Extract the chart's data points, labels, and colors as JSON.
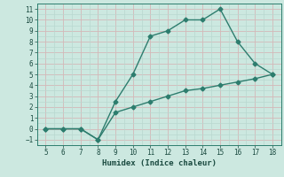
{
  "xlabel": "Humidex (Indice chaleur)",
  "xlim": [
    4.5,
    18.5
  ],
  "ylim": [
    -1.5,
    11.5
  ],
  "xticks": [
    5,
    6,
    7,
    8,
    9,
    10,
    11,
    12,
    13,
    14,
    15,
    16,
    17,
    18
  ],
  "yticks": [
    -1,
    0,
    1,
    2,
    3,
    4,
    5,
    6,
    7,
    8,
    9,
    10,
    11
  ],
  "line1_x": [
    5,
    6,
    7,
    8,
    9,
    10,
    11,
    12,
    13,
    14,
    15,
    16,
    17,
    18
  ],
  "line1_y": [
    0,
    0,
    0,
    -1,
    2.5,
    5,
    8.5,
    9,
    10,
    10,
    11,
    8,
    6,
    5
  ],
  "line2_x": [
    5,
    6,
    7,
    8,
    9,
    10,
    11,
    12,
    13,
    14,
    15,
    16,
    17,
    18
  ],
  "line2_y": [
    0,
    0,
    0,
    -1,
    1.5,
    2.0,
    2.5,
    3.0,
    3.5,
    3.7,
    4.0,
    4.3,
    4.6,
    5.0
  ],
  "line_color": "#2d7d6e",
  "bg_color": "#cce8e0",
  "grid_color": "#b8d8d0",
  "grid_color_red": "#d4b8b8",
  "marker": "D",
  "marker_size": 2.5,
  "line_width": 1.0
}
